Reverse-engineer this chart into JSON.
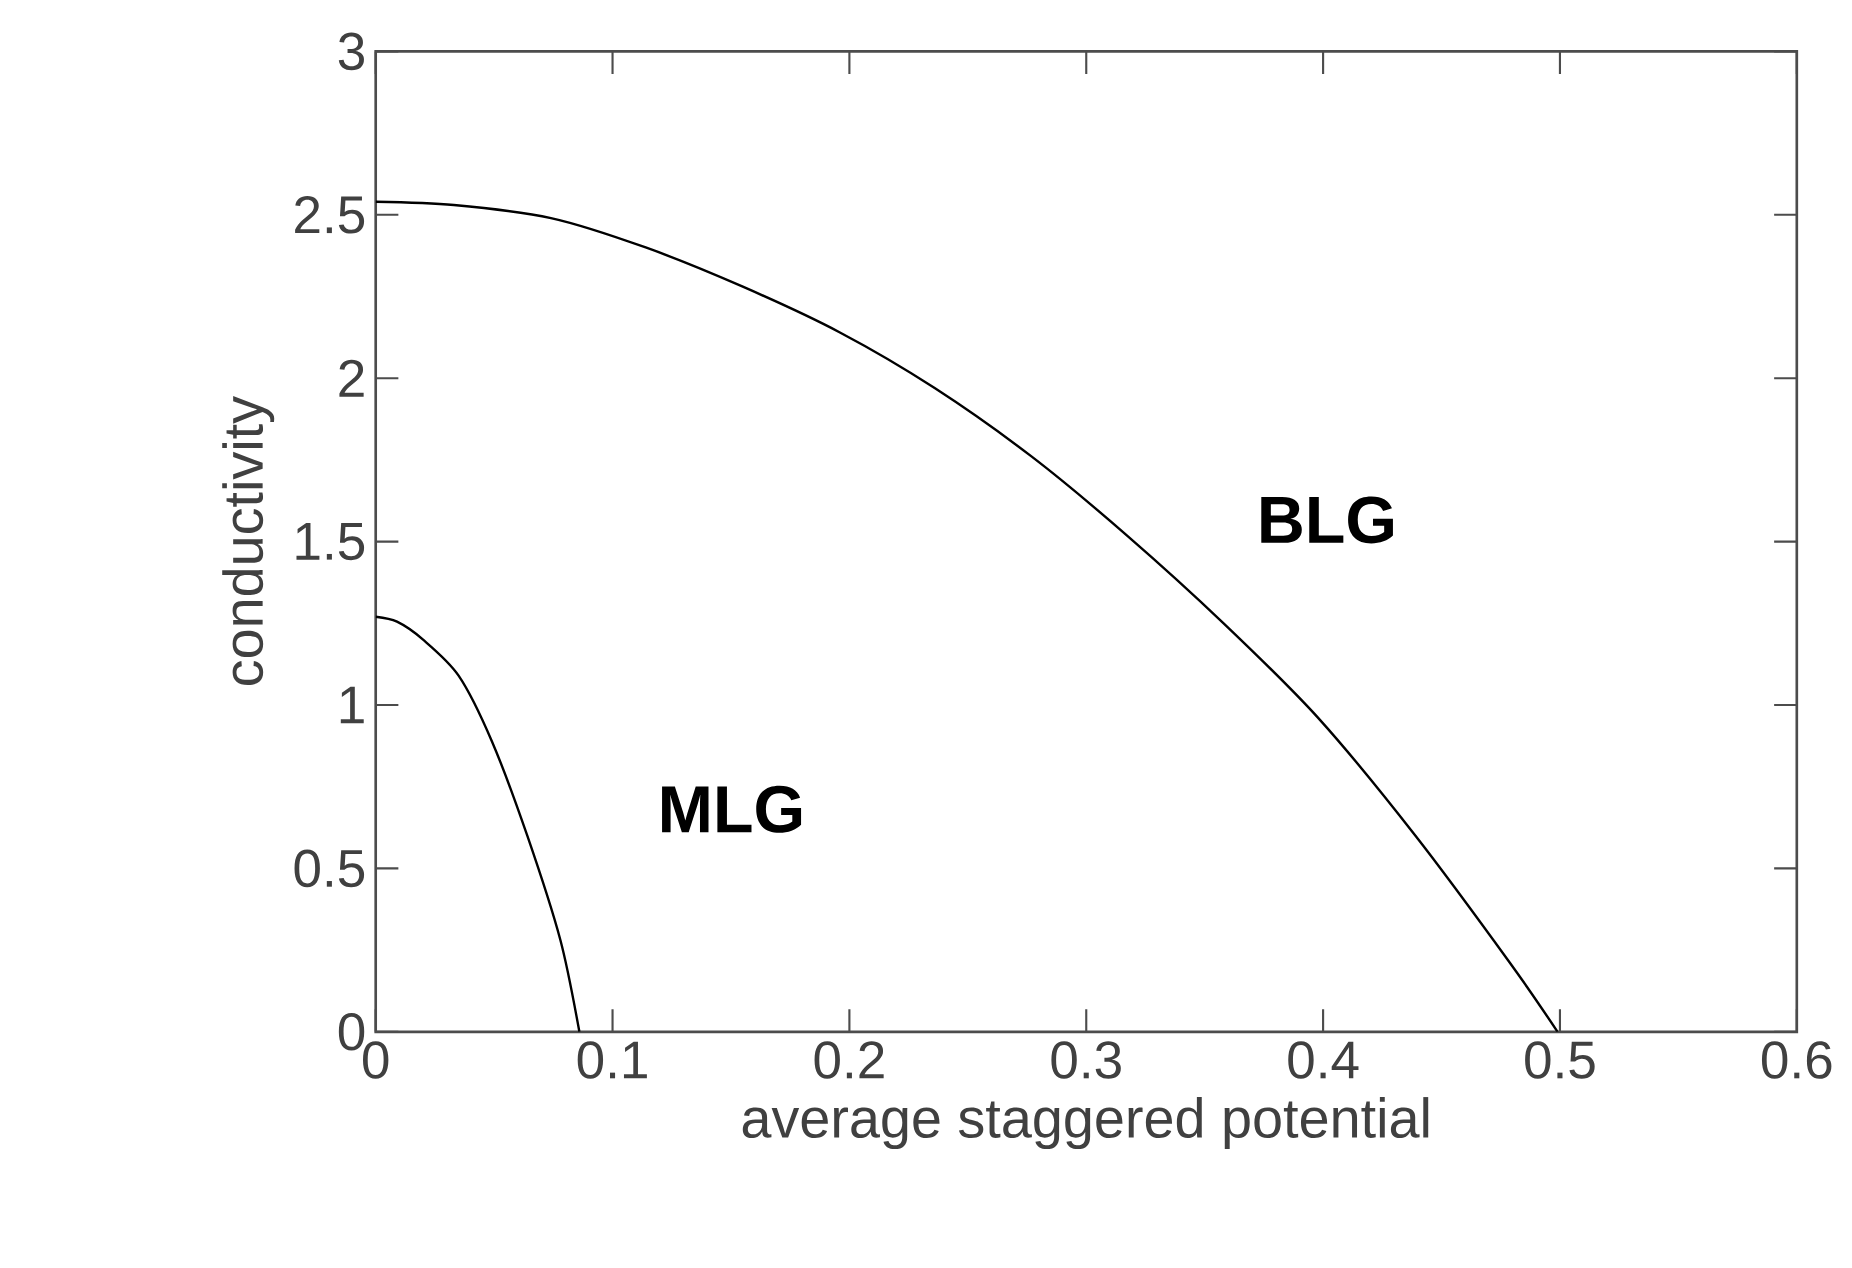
{
  "chart_data": {
    "type": "line",
    "xlabel": "average staggered potential",
    "ylabel": "conductivity",
    "xlim": [
      0,
      0.6
    ],
    "ylim": [
      0,
      3
    ],
    "xticks": [
      0,
      0.1,
      0.2,
      0.3,
      0.4,
      0.5,
      0.6
    ],
    "yticks": [
      0,
      0.5,
      1,
      1.5,
      2,
      2.5,
      3
    ],
    "grid": false,
    "marker": "none",
    "line_style": "solid",
    "series": [
      {
        "name": "BLG",
        "color": "#000000",
        "x": [
          0,
          0.033,
          0.074,
          0.114,
          0.155,
          0.196,
          0.236,
          0.277,
          0.317,
          0.358,
          0.398,
          0.439,
          0.479,
          0.499
        ],
        "values": [
          2.54,
          2.53,
          2.49,
          2.4,
          2.28,
          2.14,
          1.97,
          1.76,
          1.52,
          1.25,
          0.96,
          0.6,
          0.21,
          0
        ]
      },
      {
        "name": "MLG",
        "color": "#000000",
        "x": [
          0,
          0.009,
          0.02,
          0.035,
          0.049,
          0.064,
          0.078,
          0.086
        ],
        "values": [
          1.27,
          1.255,
          1.2,
          1.09,
          0.89,
          0.6,
          0.28,
          0
        ]
      }
    ]
  }
}
